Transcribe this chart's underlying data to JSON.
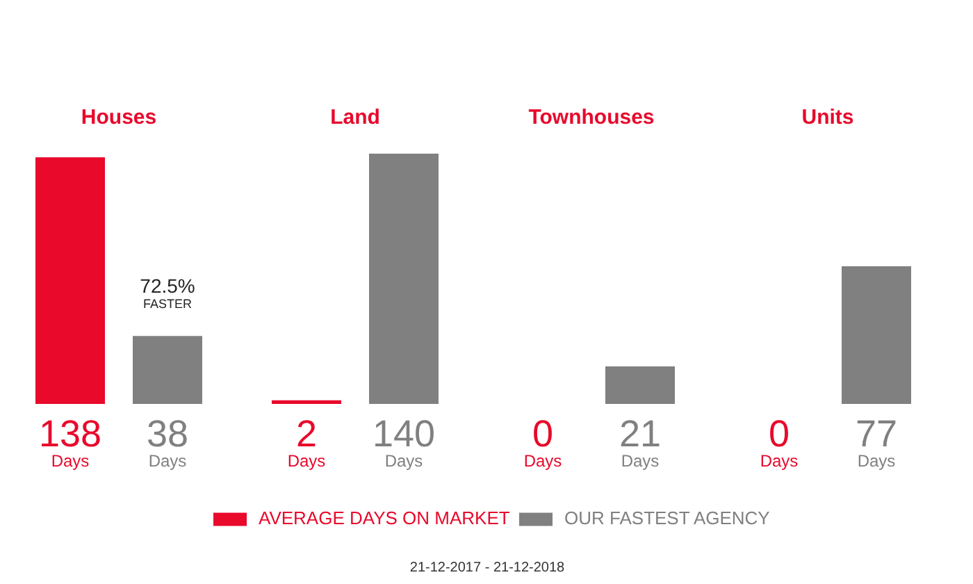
{
  "chart_data": {
    "type": "bar",
    "categories": [
      "Houses",
      "Land",
      "Townhouses",
      "Units"
    ],
    "series": [
      {
        "name": "AVERAGE DAYS ON MARKET",
        "color": "#e8092b",
        "values": [
          138,
          2,
          0,
          0
        ],
        "value_labels": [
          "138\nDays",
          "2\nDays",
          "0\nDays",
          "0\nDays"
        ]
      },
      {
        "name": "OUR FASTEST AGENCY",
        "color": "#808080",
        "values": [
          38,
          140,
          21,
          77
        ],
        "value_labels": [
          "38\nDays",
          "140\nDays",
          "21\nDays",
          "77\nDays"
        ]
      }
    ],
    "annotations": [
      "72.5%\nFASTER",
      "21-12-2017 - 21-12-2018"
    ],
    "legend": "bottom",
    "tick_labels": "x",
    "grid": false
  }
}
